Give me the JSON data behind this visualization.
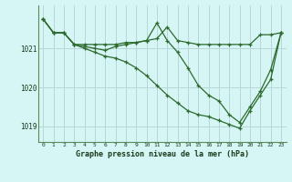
{
  "title": "Graphe pression niveau de la mer (hPa)",
  "bg_color": "#d6f5f5",
  "grid_color": "#b8d8d8",
  "line_color": "#2d6a2d",
  "x_ticks": [
    0,
    1,
    2,
    3,
    4,
    5,
    6,
    7,
    8,
    9,
    10,
    11,
    12,
    13,
    14,
    15,
    16,
    17,
    18,
    19,
    20,
    21,
    22,
    23
  ],
  "ylim": [
    1018.6,
    1022.1
  ],
  "yticks": [
    1019,
    1020,
    1021
  ],
  "series": [
    {
      "x": [
        0,
        1,
        2,
        3,
        4,
        5,
        6,
        7,
        8,
        9,
        10,
        11,
        12,
        13,
        14,
        15,
        16,
        17,
        18,
        19,
        20,
        21,
        22,
        23
      ],
      "y": [
        1021.75,
        1021.4,
        1021.4,
        1021.1,
        1021.1,
        1021.1,
        1021.1,
        1021.1,
        1021.15,
        1021.15,
        1021.2,
        1021.25,
        1021.55,
        1021.2,
        1021.15,
        1021.1,
        1021.1,
        1021.1,
        1021.1,
        1021.1,
        1021.1,
        1021.35,
        1021.35,
        1021.4
      ]
    },
    {
      "x": [
        0,
        1,
        2,
        3,
        4,
        5,
        6,
        7,
        8,
        9,
        10,
        11,
        12,
        13,
        14,
        15,
        16,
        17,
        18,
        19,
        20,
        21,
        22,
        23
      ],
      "y": [
        1021.75,
        1021.4,
        1021.4,
        1021.1,
        1021.05,
        1021.0,
        1020.95,
        1021.05,
        1021.1,
        1021.15,
        1021.2,
        1021.65,
        1021.2,
        1020.9,
        1020.5,
        1020.05,
        1019.8,
        1019.65,
        1019.3,
        1019.1,
        1019.5,
        1019.9,
        1020.45,
        1021.4
      ]
    },
    {
      "x": [
        0,
        1,
        2,
        3,
        4,
        5,
        6,
        7,
        8,
        9,
        10,
        11,
        12,
        13,
        14,
        15,
        16,
        17,
        18,
        19,
        20,
        21,
        22,
        23
      ],
      "y": [
        1021.75,
        1021.4,
        1021.4,
        1021.1,
        1021.0,
        1020.9,
        1020.8,
        1020.75,
        1020.65,
        1020.5,
        1020.3,
        1020.05,
        1019.8,
        1019.6,
        1019.4,
        1019.3,
        1019.25,
        1019.15,
        1019.05,
        1018.95,
        1019.4,
        1019.8,
        1020.2,
        1021.4
      ]
    }
  ]
}
